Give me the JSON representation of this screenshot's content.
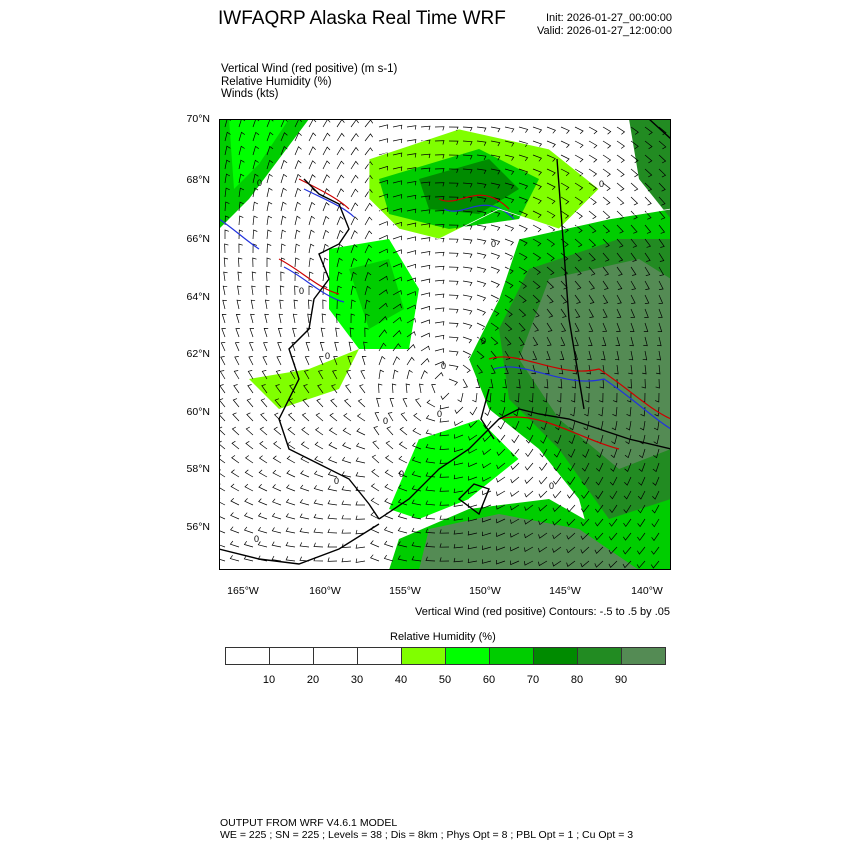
{
  "header": {
    "title": "IWFAQRP Alaska Real Time WRF",
    "init": "Init: 2026-01-27_00:00:00",
    "valid": "Valid: 2026-01-27_12:00:00"
  },
  "fields": [
    "Vertical Wind (red positive)   (m s-1)",
    "Relative Humidity   (%)",
    "Winds   (kts)"
  ],
  "map": {
    "lat_labels": [
      "70°N",
      "68°N",
      "66°N",
      "64°N",
      "62°N",
      "60°N",
      "58°N",
      "56°N"
    ],
    "lon_labels": [
      "165°W",
      "160°W",
      "155°W",
      "150°W",
      "145°W",
      "140°W"
    ],
    "contour_label": "0",
    "colors": {
      "positive": "#cc0000",
      "negative": "#2233dd",
      "coast": "#000000",
      "rh_contour": "#ffffff"
    }
  },
  "contour_note": "Vertical Wind (red positive) Contours: -.5 to .5 by .05",
  "colorbar": {
    "title": "Relative Humidity  (%)",
    "labels": [
      "10",
      "20",
      "30",
      "40",
      "50",
      "60",
      "70",
      "80",
      "90"
    ],
    "colors": [
      "#ffffff",
      "#ffffff",
      "#ffffff",
      "#ffffff",
      "#80ff00",
      "#00ff00",
      "#00cd00",
      "#008b00",
      "#228b22",
      "#548b54"
    ]
  },
  "footer": [
    "OUTPUT FROM WRF V4.6.1 MODEL",
    "WE = 225 ; SN = 225 ; Levels = 38 ; Dis = 8km ; Phys Opt = 8 ; PBL Opt = 1 ; Cu Opt = 3"
  ]
}
